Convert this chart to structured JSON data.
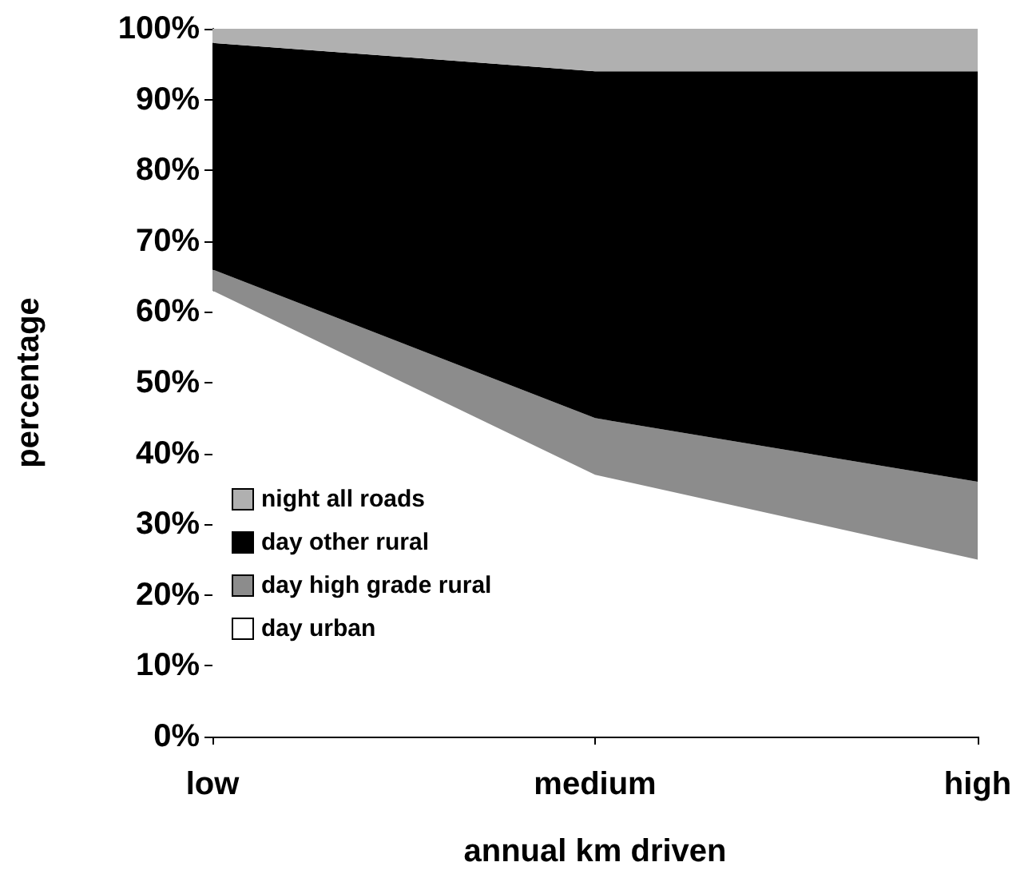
{
  "chart_data": {
    "type": "area",
    "xlabel": "annual km driven",
    "ylabel": "percentage",
    "categories": [
      "low",
      "medium",
      "high"
    ],
    "stacked": true,
    "series": [
      {
        "name": "day urban",
        "color": "#ffffff",
        "values": [
          63,
          37,
          25
        ]
      },
      {
        "name": "day high grade rural",
        "color": "#8c8c8c",
        "values": [
          3,
          8,
          11
        ]
      },
      {
        "name": "day other rural",
        "color": "#000000",
        "values": [
          32,
          49,
          58
        ]
      },
      {
        "name": "night all roads",
        "color": "#b0b0b0",
        "values": [
          2,
          6,
          6
        ]
      }
    ],
    "ylim": [
      0,
      100
    ],
    "yticks": [
      {
        "value": 0,
        "label": "0%"
      },
      {
        "value": 10,
        "label": "10%"
      },
      {
        "value": 20,
        "label": "20%"
      },
      {
        "value": 30,
        "label": "30%"
      },
      {
        "value": 40,
        "label": "40%"
      },
      {
        "value": 50,
        "label": "50%"
      },
      {
        "value": 60,
        "label": "60%"
      },
      {
        "value": 70,
        "label": "70%"
      },
      {
        "value": 80,
        "label": "80%"
      },
      {
        "value": 90,
        "label": "90%"
      },
      {
        "value": 100,
        "label": "100%"
      }
    ],
    "grid": false,
    "legend": "bottom left"
  }
}
